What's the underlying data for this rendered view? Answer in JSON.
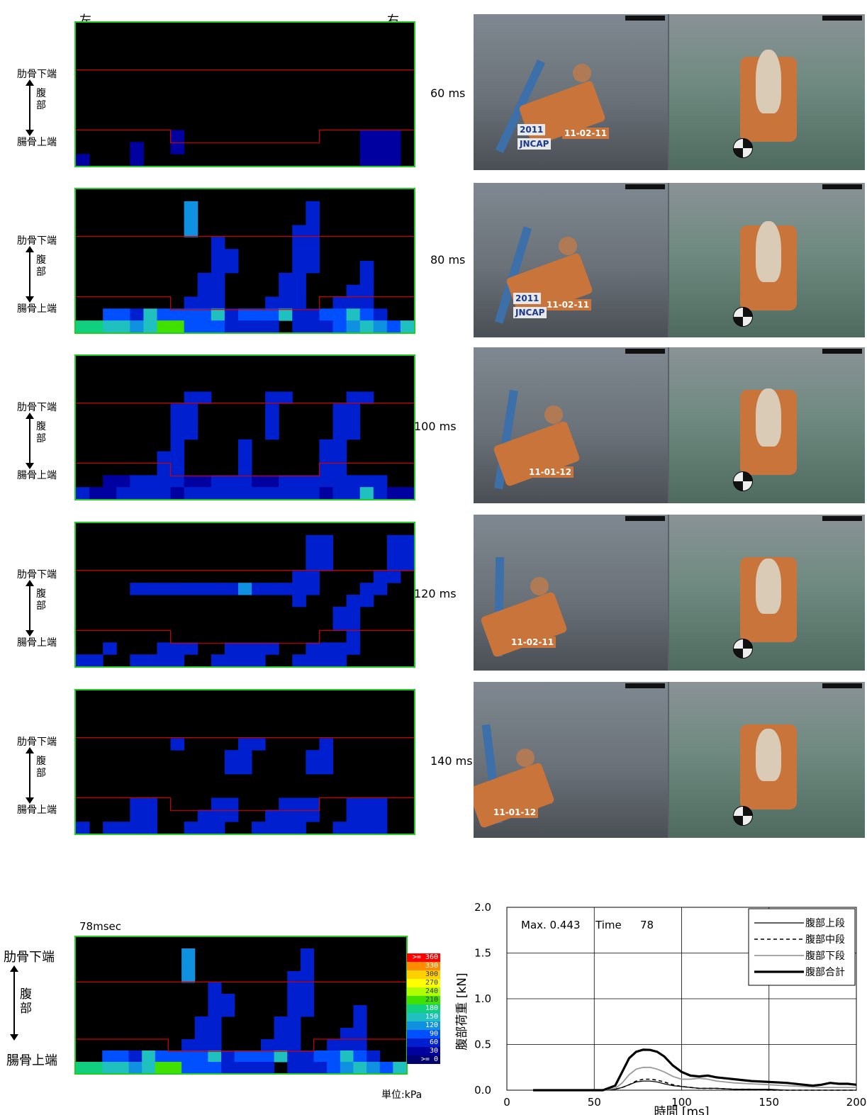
{
  "header": {
    "left": "左",
    "right": "右"
  },
  "labels": {
    "rib": "肋骨下端",
    "abdomen_top": "腹",
    "abdomen_bottom": "部",
    "pelvis": "腸骨上端"
  },
  "frames": [
    {
      "time": "60 ms"
    },
    {
      "time": "80 ms"
    },
    {
      "time": "100 ms"
    },
    {
      "time": "120 ms"
    },
    {
      "time": "140 ms"
    }
  ],
  "photo": {
    "tag_year": "2011",
    "tag_logo": "JNCAP",
    "tags_by_frame": [
      {
        "date": "11-02-11",
        "show_logo": true
      },
      {
        "date": "11-02-11",
        "show_logo": true
      },
      {
        "date": "11-01-12",
        "show_logo": false
      },
      {
        "date": "11-02-11",
        "show_logo": false
      },
      {
        "date": "11-01-12",
        "show_logo": false
      }
    ]
  },
  "bottom_map": {
    "time_label": "78msec",
    "unit": "単位:kPa",
    "legend": [
      ">= 360",
      "330",
      "300",
      "270",
      "240",
      "210",
      "180",
      "150",
      "120",
      "90",
      "60",
      "30",
      ">= 0"
    ]
  },
  "colors": {
    "legend": [
      "#ff0000",
      "#ff8c00",
      "#ffd000",
      "#ffff00",
      "#b0ff00",
      "#40e000",
      "#10d080",
      "#20c0c0",
      "#1090e0",
      "#0050ff",
      "#0020d0",
      "#0000a0",
      "#000070"
    ],
    "grid_line": "#cc0000",
    "border": "#22cc22"
  },
  "chart_data": {
    "type": "line",
    "annotation_max": "Max. 0.443",
    "annotation_time": "Time",
    "annotation_time_value": "78",
    "xlabel": "時間 [ms]",
    "ylabel": "腹部荷重 [kN]",
    "xlim": [
      0,
      200
    ],
    "ylim": [
      0,
      2.0
    ],
    "xticks": [
      "0",
      "50",
      "100",
      "150",
      "200"
    ],
    "yticks": [
      "0.0",
      "0.5",
      "1.0",
      "1.5",
      "2.0"
    ],
    "grid": true,
    "legend_position": "top-right",
    "series": [
      {
        "name": "腹部上段",
        "style": "thin-solid",
        "color": "#000000",
        "x": [
          15,
          55,
          62,
          66,
          70,
          74,
          78,
          82,
          86,
          90,
          95,
          100,
          105,
          110,
          115,
          120,
          130,
          140,
          150,
          160,
          170,
          180,
          190,
          200
        ],
        "y": [
          0,
          0,
          0.01,
          0.03,
          0.06,
          0.09,
          0.1,
          0.1,
          0.09,
          0.07,
          0.05,
          0.04,
          0.03,
          0.02,
          0.02,
          0.02,
          0.01,
          0.01,
          0.01,
          0,
          0,
          0,
          0,
          0
        ]
      },
      {
        "name": "腹部中段",
        "style": "dashed",
        "color": "#000000",
        "x": [
          15,
          55,
          62,
          66,
          70,
          74,
          78,
          82,
          86,
          90,
          95,
          100,
          105,
          110,
          120,
          130,
          140,
          150,
          160,
          170,
          180,
          190,
          200
        ],
        "y": [
          0,
          0,
          0.01,
          0.03,
          0.06,
          0.1,
          0.12,
          0.12,
          0.11,
          0.09,
          0.06,
          0.04,
          0.03,
          0.02,
          0.02,
          0.01,
          0.01,
          0,
          0,
          0,
          0,
          0,
          0
        ]
      },
      {
        "name": "腹部下段",
        "style": "gray",
        "color": "#999999",
        "x": [
          15,
          55,
          62,
          66,
          70,
          74,
          78,
          82,
          86,
          90,
          95,
          100,
          105,
          110,
          115,
          120,
          125,
          130,
          140,
          150,
          160,
          170,
          180,
          190,
          200
        ],
        "y": [
          0,
          0,
          0.02,
          0.08,
          0.17,
          0.23,
          0.25,
          0.25,
          0.23,
          0.2,
          0.15,
          0.12,
          0.12,
          0.13,
          0.12,
          0.1,
          0.09,
          0.08,
          0.07,
          0.06,
          0.05,
          0.04,
          0.03,
          0.03,
          0.03
        ]
      },
      {
        "name": "腹部合計",
        "style": "thick",
        "color": "#000000",
        "x": [
          15,
          55,
          62,
          66,
          70,
          74,
          78,
          82,
          86,
          90,
          95,
          100,
          105,
          110,
          115,
          120,
          125,
          130,
          140,
          150,
          160,
          170,
          175,
          180,
          185,
          190,
          195,
          200
        ],
        "y": [
          0,
          0,
          0.05,
          0.2,
          0.35,
          0.42,
          0.443,
          0.44,
          0.42,
          0.37,
          0.27,
          0.2,
          0.16,
          0.15,
          0.16,
          0.14,
          0.13,
          0.12,
          0.1,
          0.09,
          0.08,
          0.06,
          0.05,
          0.06,
          0.08,
          0.07,
          0.07,
          0.06
        ]
      }
    ]
  },
  "heatmaps": [
    {
      "cells": [
        [
          0,
          11,
          2
        ],
        [
          0,
          12,
          2
        ],
        [
          1,
          4,
          2
        ],
        [
          1,
          4,
          11
        ],
        [
          1,
          5,
          11
        ],
        [
          1,
          7,
          11
        ],
        [
          2,
          7,
          11
        ],
        [
          2,
          7,
          12
        ],
        [
          1,
          8,
          12
        ],
        [
          0,
          9,
          1
        ],
        [
          1,
          10,
          11
        ],
        [
          1,
          11,
          11
        ],
        [
          2,
          11,
          1
        ],
        [
          1,
          12,
          1
        ],
        [
          0,
          13,
          1
        ],
        [
          0,
          14,
          1
        ],
        [
          0,
          19,
          1
        ],
        [
          0,
          20,
          2
        ],
        [
          2,
          20,
          2
        ],
        [
          0,
          21,
          1
        ],
        [
          1,
          22,
          2
        ],
        [
          0,
          22,
          3
        ],
        [
          1,
          23,
          3
        ],
        [
          1,
          22,
          11
        ],
        [
          1,
          22,
          12
        ],
        [
          1,
          23,
          12
        ],
        [
          1,
          24,
          12
        ],
        [
          1,
          25,
          12
        ],
        [
          1,
          26,
          11
        ],
        [
          1,
          26,
          12
        ],
        [
          1,
          27,
          11
        ],
        [
          1,
          28,
          11
        ],
        [
          1,
          28,
          12
        ],
        [
          1,
          29,
          11
        ],
        [
          1,
          30,
          11
        ],
        [
          1,
          30,
          12
        ],
        [
          1,
          31,
          12
        ]
      ]
    },
    {
      "cells": []
    },
    {
      "cells": []
    },
    {
      "cells": []
    },
    {
      "cells": []
    }
  ]
}
